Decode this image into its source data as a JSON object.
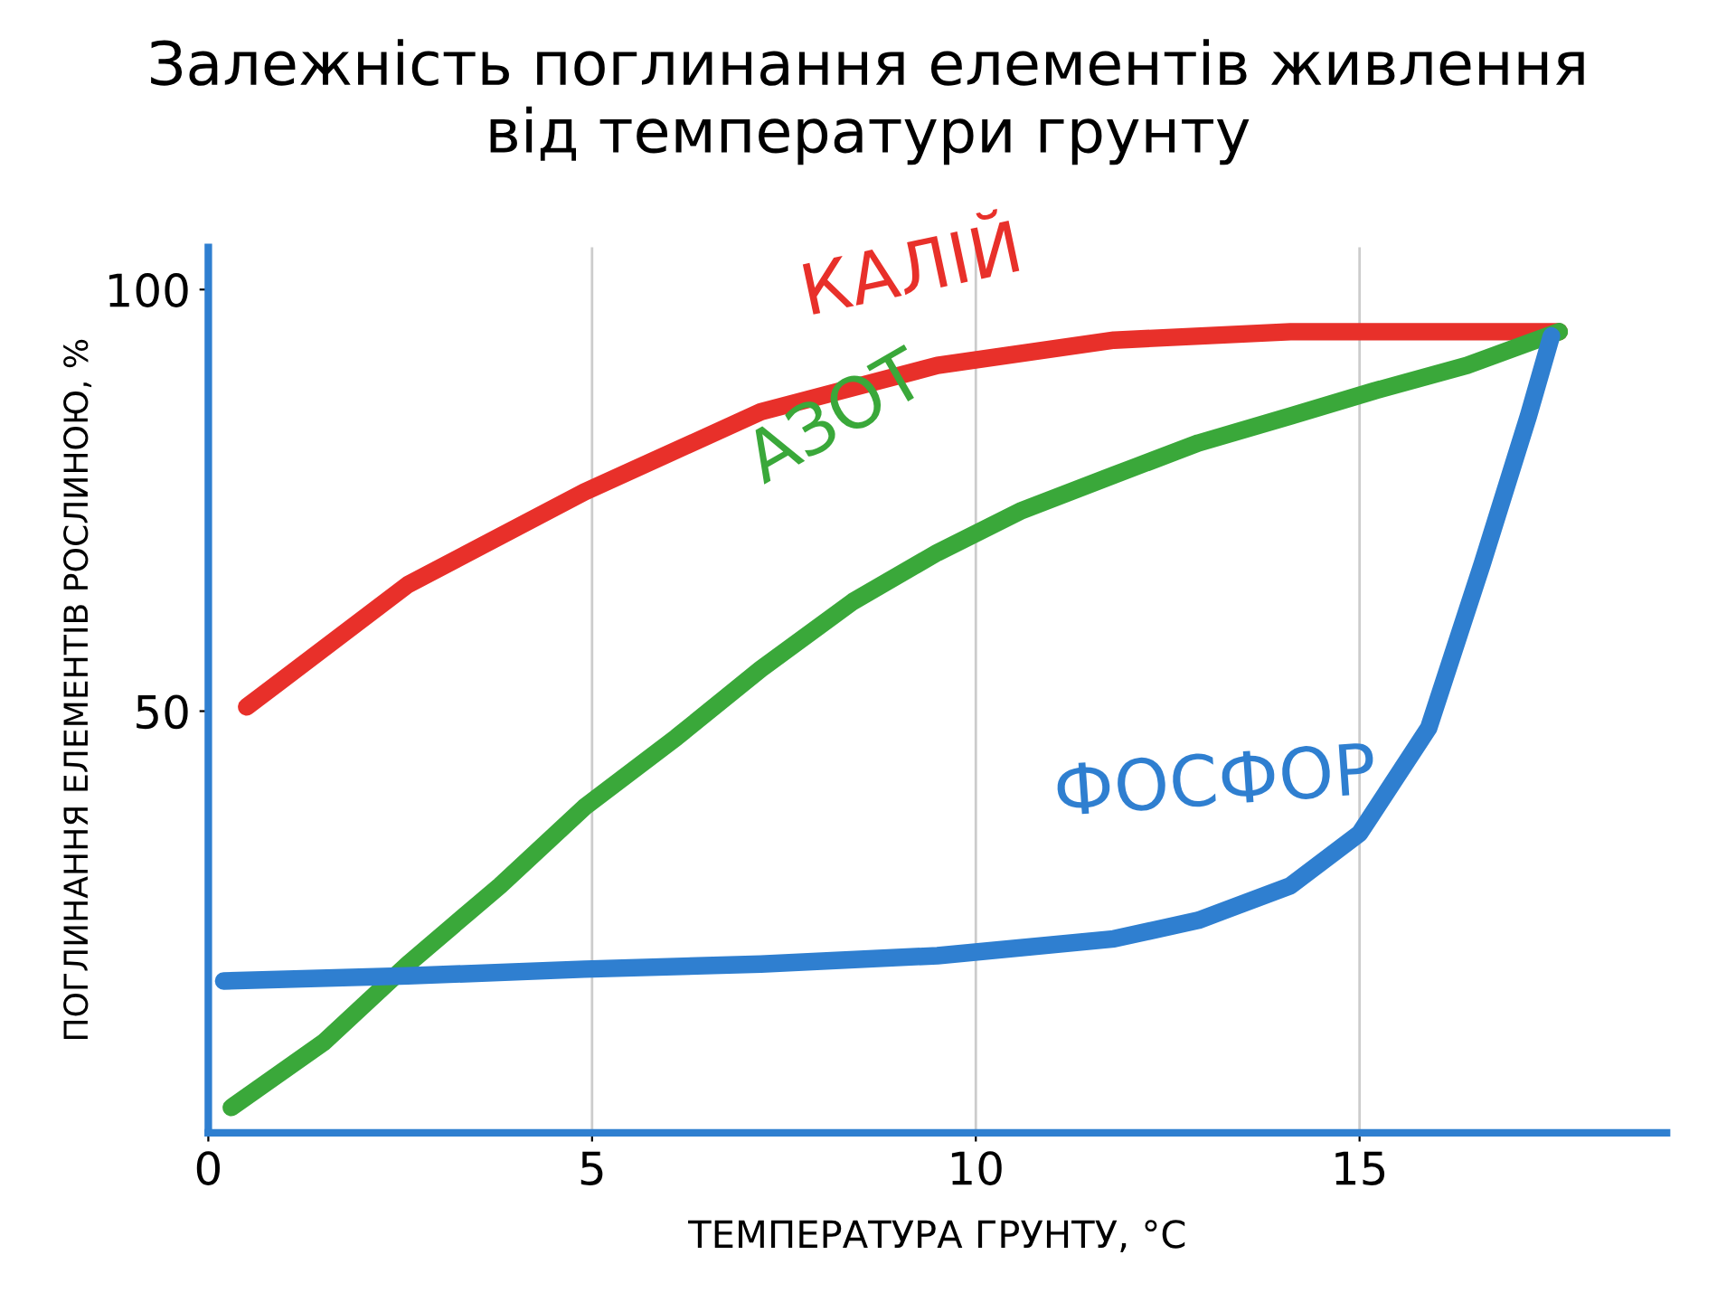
{
  "chart_data": {
    "type": "line",
    "title": "Залежність поглинання елементів живлення\nвід температури грунту",
    "xlabel": "ТЕМПЕРАТУРА ГРУНТУ, °C",
    "ylabel": "ПОГЛИНАННЯ ЕЛЕМЕНТІВ РОСЛИНОЮ, %",
    "xlim": [
      0,
      19
    ],
    "ylim": [
      0,
      105
    ],
    "xticks": [
      0,
      5,
      10,
      15
    ],
    "yticks": [
      50,
      100
    ],
    "grid": "x",
    "legend": false,
    "marker": "none",
    "line_style": "solid",
    "series": [
      {
        "name": "КАЛІЙ",
        "color": "#e8302a",
        "x": [
          0.5,
          2.6,
          4.9,
          7.2,
          9.5,
          11.8,
          14.1,
          16.4,
          17.6
        ],
        "values": [
          50.5,
          65,
          76,
          85.5,
          91,
          94,
          95,
          95,
          95
        ]
      },
      {
        "name": "АЗОТ",
        "color": "#3aa83a",
        "x": [
          0.3,
          1.5,
          2.6,
          3.8,
          4.9,
          6.1,
          7.2,
          8.4,
          9.5,
          10.6,
          11.8,
          12.9,
          14.1,
          15.2,
          16.4,
          17.6
        ],
        "values": [
          3,
          10.7,
          20,
          29.3,
          38.6,
          46.9,
          55,
          63,
          68.8,
          73.8,
          78,
          81.8,
          85,
          88,
          91,
          95
        ]
      },
      {
        "name": "ФОСФОР",
        "color": "#2f7fd0",
        "x": [
          0.2,
          2.6,
          4.9,
          7.2,
          9.5,
          11.8,
          12.9,
          14.1,
          15,
          15.9,
          16.6,
          17.2,
          17.5
        ],
        "values": [
          18,
          18.6,
          19.4,
          20,
          21,
          23,
          25.2,
          29.3,
          35.5,
          48,
          67.5,
          85,
          94.5
        ]
      }
    ]
  }
}
